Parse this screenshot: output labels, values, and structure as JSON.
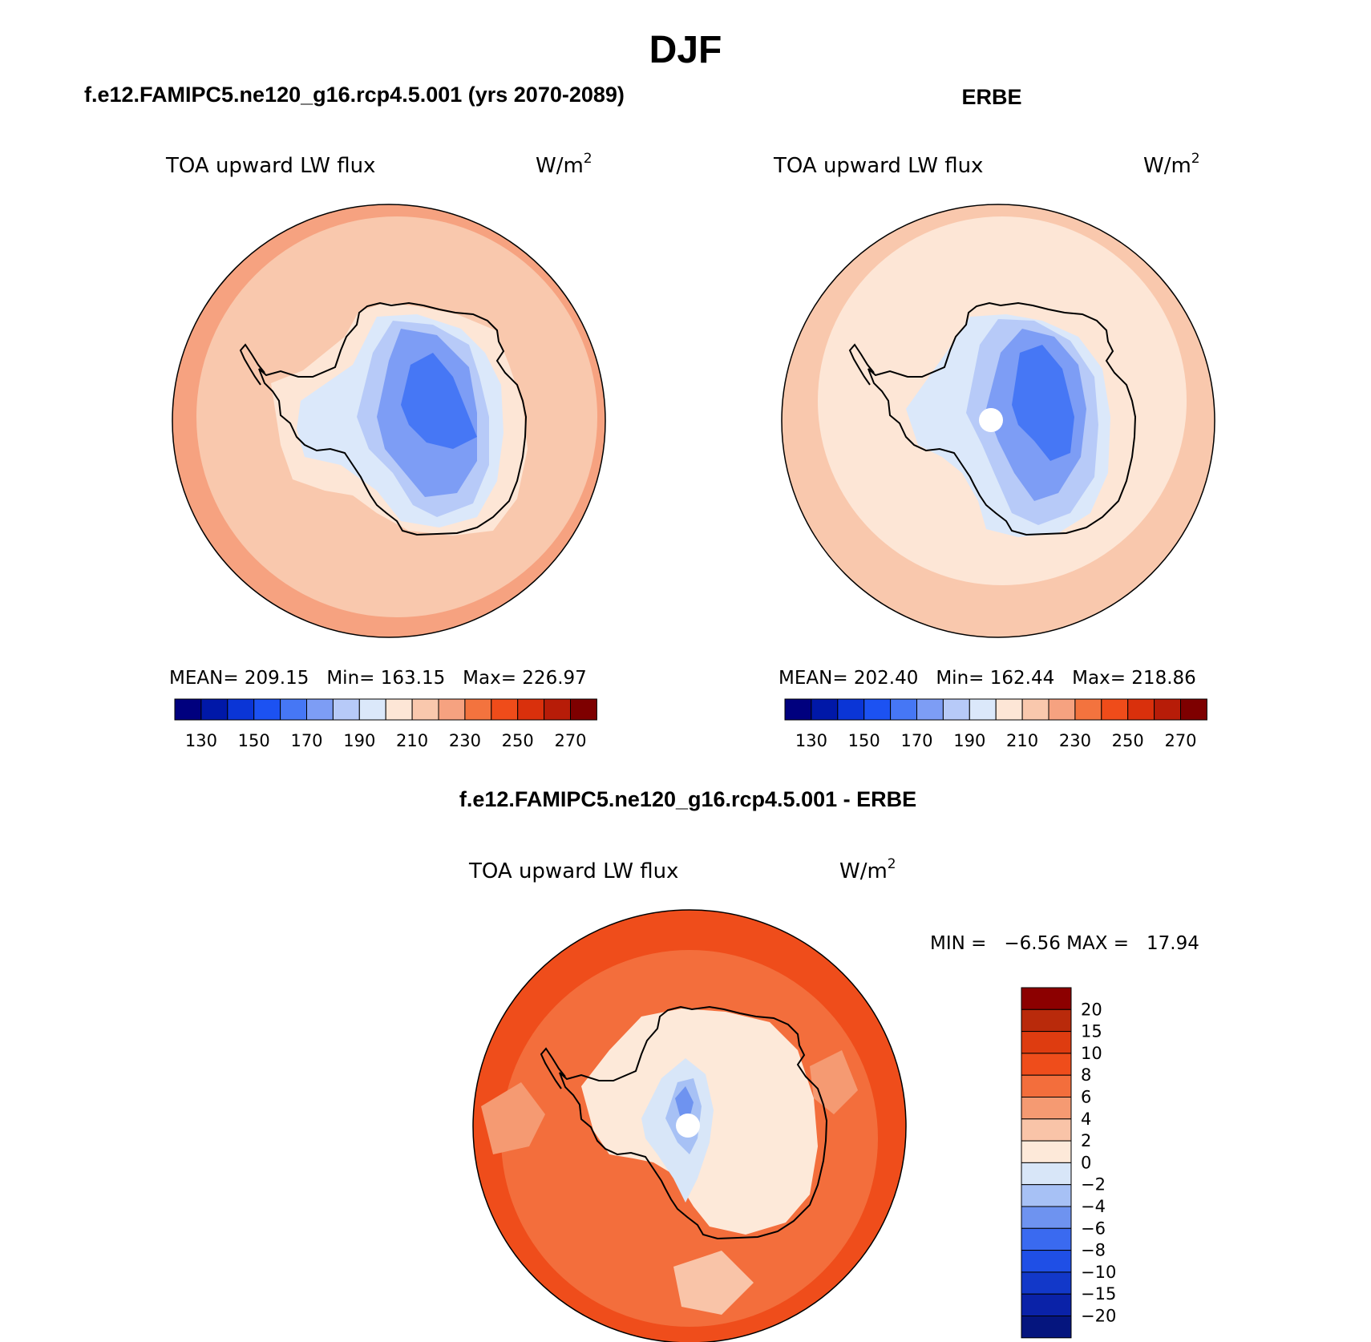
{
  "figure": {
    "season": "DJF",
    "unit_base": "W/m",
    "unit_exp": "2",
    "variable": "TOA upward LW flux",
    "colors": {
      "abs_levels": [
        "#00007e",
        "#0018a8",
        "#0a35d6",
        "#1c52f2",
        "#4677f5",
        "#7d9df5",
        "#b7caf8",
        "#dbe8fa",
        "#fde6d6",
        "#f9c8ad",
        "#f6a280",
        "#f3733e",
        "#ef4c1a",
        "#d9300c",
        "#b71c08",
        "#7e0000"
      ],
      "diff_levels": [
        "#05157e",
        "#0a22a8",
        "#1238c9",
        "#1f4fe6",
        "#3a6af0",
        "#6e93f0",
        "#a7c1f5",
        "#d8e6f8",
        "#fde9d9",
        "#f9c4a8",
        "#f59a72",
        "#f36e3c",
        "#ef4d1b",
        "#de3c10",
        "#b92a0b",
        "#8c0000"
      ],
      "coast": "#000000"
    }
  },
  "panels": {
    "left": {
      "title": "f.e12.FAMIPC5.ne120_g16.rcp4.5.001 (yrs 2070-2089)",
      "stats": {
        "mean_label": "MEAN=",
        "mean": "209.15",
        "min_label": "Min=",
        "min": "163.15",
        "max_label": "Max=",
        "max": "226.97"
      }
    },
    "right": {
      "title": "ERBE",
      "stats": {
        "mean_label": "MEAN=",
        "mean": "202.40",
        "min_label": "Min=",
        "min": "162.44",
        "max_label": "Max=",
        "max": "218.86"
      }
    },
    "diff": {
      "title": "f.e12.FAMIPC5.ne120_g16.rcp4.5.001 - ERBE",
      "stats_text": "MIN =   −6.56 MAX =   17.94"
    }
  },
  "colorbars": {
    "abs_ticks": [
      "130",
      "150",
      "170",
      "190",
      "210",
      "230",
      "250",
      "270"
    ],
    "diff_ticks": [
      "20",
      "15",
      "10",
      "8",
      "6",
      "4",
      "2",
      "0",
      "−2",
      "−4",
      "−6",
      "−8",
      "−10",
      "−15",
      "−20"
    ]
  }
}
